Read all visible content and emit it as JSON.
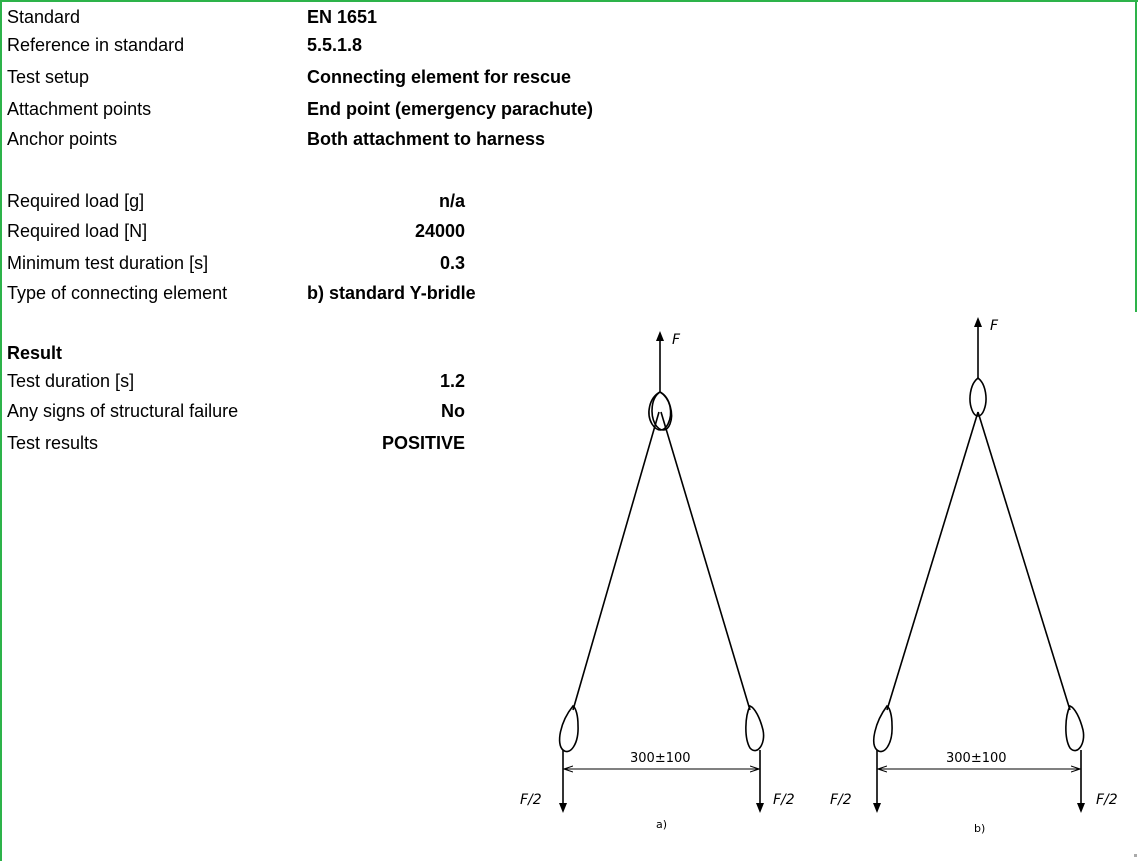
{
  "info": [
    {
      "label": "Standard",
      "value": "EN 1651"
    },
    {
      "label": "Reference in standard",
      "value": "5.5.1.8"
    },
    {
      "label": "Test setup",
      "value": "Connecting element for rescue"
    },
    {
      "label": "Attachment points",
      "value": "End point (emergency parachute)"
    },
    {
      "label": "Anchor points",
      "value": "Both attachment to harness"
    }
  ],
  "requirements": [
    {
      "label": "Required load [g]",
      "value": "n/a"
    },
    {
      "label": "Required load [N]",
      "value": "24000"
    },
    {
      "label": "Minimum test duration [s]",
      "value": "0.3"
    },
    {
      "label": "Type of connecting element",
      "value": "b) standard Y-bridle"
    }
  ],
  "result": {
    "heading": "Result",
    "rows": [
      {
        "label": "Test duration [s]",
        "value": "1.2"
      },
      {
        "label": "Any signs of structural failure",
        "value": "No"
      },
      {
        "label": "Test results",
        "value": "POSITIVE"
      }
    ]
  },
  "figure": {
    "force_top": "F",
    "force_half": "F/2",
    "dimension": "300±100",
    "caption_a": "a)",
    "caption_b": "b)"
  },
  "colors": {
    "frame": "#2db34a"
  }
}
